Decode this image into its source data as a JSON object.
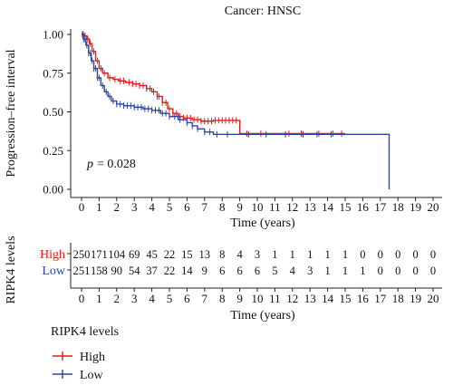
{
  "chart_data": {
    "type": "line",
    "title": "Cancer: HNSC",
    "xlabel": "Time (years)",
    "ylabel": "Progression–free interval",
    "xlim": [
      0,
      20
    ],
    "ylim": [
      0,
      1
    ],
    "x_ticks": [
      "0",
      "1",
      "2",
      "3",
      "4",
      "5",
      "6",
      "7",
      "8",
      "9",
      "10",
      "11",
      "12",
      "13",
      "14",
      "15",
      "16",
      "17",
      "18",
      "19",
      "20"
    ],
    "y_ticks": [
      "0.00",
      "0.25",
      "0.50",
      "0.75",
      "1.00"
    ],
    "annotation": {
      "p_label": "p",
      "p_value": "= 0.028"
    },
    "colors": {
      "High": "#e31a1c",
      "Low": "#2b44a8"
    },
    "series": [
      {
        "name": "High",
        "points": [
          [
            0,
            1.0
          ],
          [
            0.15,
            0.99
          ],
          [
            0.3,
            0.97
          ],
          [
            0.45,
            0.94
          ],
          [
            0.6,
            0.89
          ],
          [
            0.8,
            0.83
          ],
          [
            1.0,
            0.78
          ],
          [
            1.2,
            0.75
          ],
          [
            1.5,
            0.72
          ],
          [
            1.8,
            0.71
          ],
          [
            2.1,
            0.7
          ],
          [
            2.5,
            0.69
          ],
          [
            2.9,
            0.68
          ],
          [
            3.3,
            0.67
          ],
          [
            3.7,
            0.65
          ],
          [
            4.0,
            0.63
          ],
          [
            4.3,
            0.6
          ],
          [
            4.6,
            0.56
          ],
          [
            4.9,
            0.52
          ],
          [
            5.2,
            0.49
          ],
          [
            5.5,
            0.47
          ],
          [
            5.8,
            0.46
          ],
          [
            6.3,
            0.45
          ],
          [
            6.8,
            0.44
          ],
          [
            7.5,
            0.445
          ],
          [
            8.0,
            0.445
          ],
          [
            8.95,
            0.445
          ],
          [
            9.0,
            0.36
          ],
          [
            12.0,
            0.36
          ],
          [
            15.0,
            0.36
          ]
        ],
        "censor_x": [
          0.05,
          0.1,
          0.2,
          0.35,
          0.5,
          0.7,
          0.9,
          1.1,
          1.3,
          1.6,
          1.9,
          2.2,
          2.4,
          2.7,
          2.9,
          3.1,
          3.3,
          3.5,
          3.7,
          3.9,
          4.1,
          4.3,
          4.4,
          4.6,
          4.8,
          5.0,
          5.2,
          5.4,
          5.6,
          5.8,
          6.0,
          6.2,
          6.4,
          6.6,
          6.8,
          7.0,
          7.2,
          7.4,
          7.6,
          7.8,
          8.0,
          8.2,
          8.4,
          8.6,
          8.8,
          9.4,
          10.2,
          11.8,
          12.5,
          13.5,
          14.3,
          14.8
        ]
      },
      {
        "name": "Low",
        "points": [
          [
            0,
            1.0
          ],
          [
            0.1,
            0.97
          ],
          [
            0.25,
            0.93
          ],
          [
            0.4,
            0.88
          ],
          [
            0.55,
            0.83
          ],
          [
            0.7,
            0.78
          ],
          [
            0.9,
            0.72
          ],
          [
            1.1,
            0.67
          ],
          [
            1.3,
            0.63
          ],
          [
            1.5,
            0.6
          ],
          [
            1.7,
            0.57
          ],
          [
            2.0,
            0.55
          ],
          [
            2.4,
            0.54
          ],
          [
            3.0,
            0.53
          ],
          [
            3.5,
            0.52
          ],
          [
            4.0,
            0.51
          ],
          [
            4.5,
            0.49
          ],
          [
            5.0,
            0.47
          ],
          [
            5.5,
            0.45
          ],
          [
            6.0,
            0.43
          ],
          [
            6.3,
            0.41
          ],
          [
            6.6,
            0.39
          ],
          [
            7.0,
            0.37
          ],
          [
            7.5,
            0.355
          ],
          [
            9.0,
            0.355
          ],
          [
            12.0,
            0.355
          ],
          [
            15.0,
            0.355
          ],
          [
            17.5,
            0.355
          ],
          [
            17.5,
            0.0
          ]
        ],
        "censor_x": [
          0.05,
          0.12,
          0.2,
          0.3,
          0.4,
          0.5,
          0.6,
          0.7,
          0.8,
          0.9,
          1.0,
          1.2,
          1.4,
          1.6,
          1.8,
          2.0,
          2.2,
          2.4,
          2.6,
          2.8,
          3.0,
          3.2,
          3.4,
          3.6,
          3.8,
          4.0,
          4.2,
          4.4,
          4.6,
          4.8,
          5.0,
          5.3,
          5.6,
          6.0,
          6.3,
          6.6,
          7.0,
          7.3,
          7.7,
          8.3,
          9.5,
          10.5,
          11.6,
          12.6,
          13.4,
          14.2
        ]
      }
    ]
  },
  "risk_table": {
    "title": "RIPK4 levels",
    "xlabel": "Time (years)",
    "x_ticks": [
      "0",
      "1",
      "2",
      "3",
      "4",
      "5",
      "6",
      "7",
      "8",
      "9",
      "10",
      "11",
      "12",
      "13",
      "14",
      "15",
      "16",
      "17",
      "18",
      "19",
      "20"
    ],
    "rows": [
      {
        "name": "High",
        "counts": [
          "250",
          "171",
          "104",
          "69",
          "45",
          "22",
          "15",
          "13",
          "8",
          "4",
          "3",
          "1",
          "1",
          "1",
          "1",
          "1",
          "0",
          "0",
          "0",
          "0",
          "0"
        ]
      },
      {
        "name": "Low",
        "counts": [
          "251",
          "158",
          "90",
          "54",
          "37",
          "22",
          "14",
          "9",
          "6",
          "6",
          "6",
          "5",
          "4",
          "3",
          "1",
          "1",
          "1",
          "0",
          "0",
          "0",
          "0"
        ]
      }
    ]
  },
  "legend": {
    "title": "RIPK4 levels",
    "items": [
      {
        "name": "High"
      },
      {
        "name": "Low"
      }
    ]
  }
}
